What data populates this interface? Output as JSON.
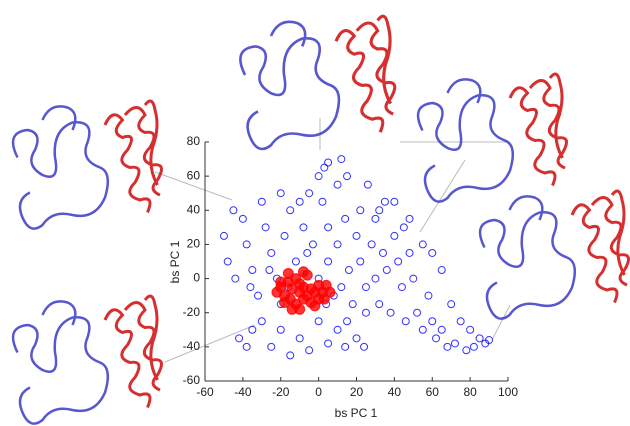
{
  "chart_data": {
    "type": "scatter",
    "xlabel": "bs PC 1",
    "ylabel": "bs PC 1",
    "xlim": [
      -60,
      100
    ],
    "xticks": [
      -60,
      -40,
      -20,
      0,
      20,
      40,
      60,
      80,
      100
    ],
    "ylim": [
      -60,
      80
    ],
    "yticks": [
      -60,
      -40,
      -20,
      0,
      20,
      40,
      60,
      80
    ],
    "series": [
      {
        "color": "#0000ff",
        "x": [
          -45,
          -40,
          -38,
          -35,
          -32,
          -30,
          -28,
          -25,
          -22,
          -20,
          -20,
          -18,
          -15,
          -12,
          -10,
          -8,
          -5,
          -3,
          0,
          0,
          2,
          3,
          5,
          5,
          8,
          10,
          10,
          12,
          14,
          15,
          16,
          18,
          20,
          22,
          22,
          25,
          26,
          28,
          30,
          30,
          32,
          34,
          35,
          36,
          38,
          40,
          42,
          44,
          45,
          46,
          48,
          50,
          52,
          55,
          58,
          60,
          62,
          65,
          68,
          72,
          78,
          82,
          85,
          88,
          90,
          -42,
          -38,
          -35,
          -25,
          -15,
          -5,
          5,
          10,
          15,
          20,
          25,
          -48,
          -50,
          -44,
          -30,
          -20,
          -10,
          0,
          5,
          12,
          -36,
          -26,
          -16,
          -6,
          4,
          14,
          24,
          32,
          40,
          48,
          55,
          60,
          65,
          70,
          75,
          80
        ],
        "y": [
          40,
          35,
          20,
          5,
          -10,
          -25,
          30,
          15,
          0,
          -15,
          -30,
          25,
          40,
          10,
          -35,
          30,
          50,
          20,
          0,
          -25,
          45,
          65,
          30,
          10,
          -10,
          55,
          20,
          -5,
          35,
          60,
          5,
          -15,
          25,
          40,
          10,
          -5,
          55,
          20,
          35,
          0,
          -15,
          15,
          45,
          5,
          -20,
          25,
          10,
          -5,
          30,
          -25,
          15,
          0,
          -20,
          -30,
          -10,
          -25,
          -35,
          -30,
          -40,
          -38,
          -42,
          -40,
          -35,
          -38,
          -36,
          -35,
          -40,
          -30,
          -40,
          -45,
          -42,
          -38,
          -30,
          -25,
          -35,
          -20,
          10,
          25,
          0,
          45,
          50,
          45,
          60,
          68,
          70,
          -5,
          5,
          -5,
          15,
          -15,
          -40,
          -40,
          40,
          45,
          35,
          20,
          15,
          5,
          -15,
          -25,
          -30
        ]
      },
      {
        "color": "#ff0000",
        "x": [
          -20,
          -18,
          -16,
          -15,
          -14,
          -12,
          -12,
          -10,
          -10,
          -8,
          -8,
          -6,
          -6,
          -4,
          -4,
          -2,
          0,
          0,
          2,
          4,
          -18,
          -16,
          -2,
          -14,
          -22,
          -8,
          -10,
          3,
          6,
          -20
        ],
        "y": [
          -5,
          -10,
          -2,
          -12,
          -6,
          -15,
          0,
          -8,
          -3,
          -12,
          -5,
          -10,
          2,
          -6,
          -14,
          -8,
          -4,
          -12,
          -8,
          -4,
          -14,
          3,
          -16,
          -18,
          -8,
          4,
          -18,
          -12,
          -8,
          -2
        ]
      }
    ]
  }
}
